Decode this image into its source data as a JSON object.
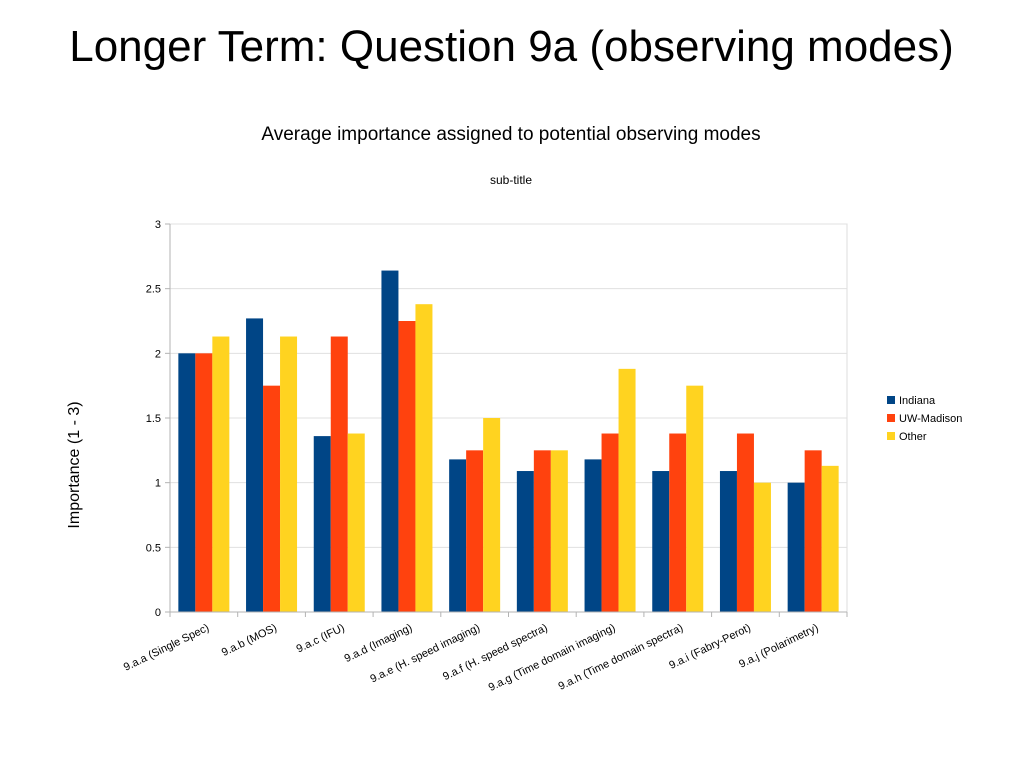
{
  "slide": {
    "title": "Longer Term:  Question 9a (observing modes)"
  },
  "chart_data": {
    "type": "bar",
    "title": "Average importance assigned to potential observing modes",
    "subtitle": "sub-title",
    "xlabel": "",
    "ylabel": "Importance (1 - 3)",
    "ylim": [
      0,
      3
    ],
    "yticks": [
      0,
      0.5,
      1,
      1.5,
      2,
      2.5,
      3
    ],
    "grid": true,
    "legend_position": "right",
    "categories": [
      "9.a.a (Single Spec)",
      "9.a.b (MOS)",
      "9.a.c (IFU)",
      "9.a.d (Imaging)",
      "9.a.e (H. speed imaging)",
      "9.a.f (H. speed spectra)",
      "9.a.g (Time domain imaging)",
      "9.a.h (Time domain spectra)",
      "9.a.i (Fabry-Perot)",
      "9.a.j (Polarimetry)"
    ],
    "series": [
      {
        "name": "Indiana",
        "color": "#004586",
        "values": [
          2.0,
          2.27,
          1.36,
          2.64,
          1.18,
          1.09,
          1.18,
          1.09,
          1.09,
          1.0
        ]
      },
      {
        "name": "UW-Madison",
        "color": "#ff420e",
        "values": [
          2.0,
          1.75,
          2.13,
          2.25,
          1.25,
          1.25,
          1.38,
          1.38,
          1.38,
          1.25
        ]
      },
      {
        "name": "Other",
        "color": "#ffd320",
        "values": [
          2.13,
          2.13,
          1.38,
          2.38,
          1.5,
          1.25,
          1.88,
          1.75,
          1.0,
          1.13
        ]
      }
    ]
  }
}
